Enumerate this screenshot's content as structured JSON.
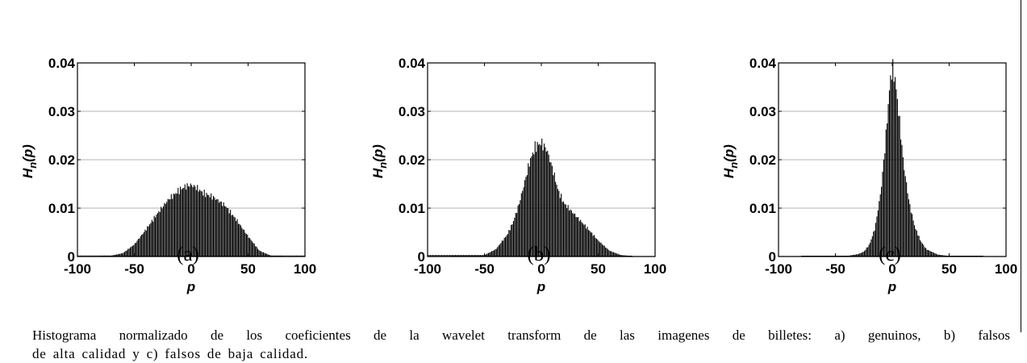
{
  "figures": [
    {
      "id": "a",
      "panel_label": "(a)"
    },
    {
      "id": "b",
      "panel_label": "(b)"
    },
    {
      "id": "c",
      "panel_label": "(c)"
    }
  ],
  "caption": {
    "line1": "Histograma normalizado de los coeficientes de la wavelet transform de las imagenes de billetes: a) genuinos, b) falsos",
    "line2": "de alta calidad y c) falsos de baja calidad."
  },
  "chart_data": [
    {
      "type": "bar",
      "title": "",
      "xlabel": "p",
      "ylabel": "H_n(p)",
      "ylabel_main": "H",
      "ylabel_sub": "n",
      "ylabel_tail": "(p)",
      "xlim": [
        -100,
        100
      ],
      "ylim": [
        0,
        0.04
      ],
      "xticks": [
        "-100",
        "-50",
        "0",
        "50",
        "100"
      ],
      "yticks": [
        "0",
        "0.01",
        "0.02",
        "0.03",
        "0.04"
      ],
      "grid": "horizontal",
      "bar_color": "#000000",
      "x": [
        -70,
        -60,
        -50,
        -40,
        -30,
        -20,
        -10,
        -5,
        0,
        5,
        10,
        20,
        30,
        40,
        50,
        60,
        70
      ],
      "values": [
        0.0002,
        0.0007,
        0.0025,
        0.0055,
        0.0088,
        0.0118,
        0.0138,
        0.0145,
        0.0148,
        0.0142,
        0.0132,
        0.0122,
        0.0105,
        0.0075,
        0.0042,
        0.0012,
        0.0002
      ]
    },
    {
      "type": "bar",
      "title": "",
      "xlabel": "p",
      "ylabel": "H_n(p)",
      "ylabel_main": "H",
      "ylabel_sub": "n",
      "ylabel_tail": "(p)",
      "xlim": [
        -100,
        100
      ],
      "ylim": [
        0,
        0.04
      ],
      "xticks": [
        "-100",
        "-50",
        "0",
        "50",
        "100"
      ],
      "yticks": [
        "0",
        "0.01",
        "0.02",
        "0.03",
        "0.04"
      ],
      "grid": "horizontal",
      "bar_color": "#000000",
      "x": [
        -50,
        -40,
        -30,
        -25,
        -20,
        -15,
        -10,
        -5,
        0,
        5,
        10,
        15,
        20,
        30,
        40,
        50,
        60,
        70,
        80
      ],
      "values": [
        0.0003,
        0.0015,
        0.0045,
        0.007,
        0.0105,
        0.015,
        0.0198,
        0.0228,
        0.0235,
        0.022,
        0.018,
        0.0135,
        0.011,
        0.0085,
        0.006,
        0.0033,
        0.0012,
        0.0003,
        0.0001
      ]
    },
    {
      "type": "bar",
      "title": "",
      "xlabel": "p",
      "ylabel": "H_n(p)",
      "ylabel_main": "H",
      "ylabel_sub": "n",
      "ylabel_tail": "(p)",
      "xlim": [
        -100,
        100
      ],
      "ylim": [
        0,
        0.04
      ],
      "xticks": [
        "-100",
        "-50",
        "0",
        "50",
        "100"
      ],
      "yticks": [
        "0",
        "0.01",
        "0.02",
        "0.03",
        "0.04"
      ],
      "grid": "horizontal",
      "bar_color": "#000000",
      "x": [
        -40,
        -30,
        -25,
        -20,
        -15,
        -10,
        -6,
        -3,
        -1,
        0,
        2,
        4,
        7,
        10,
        15,
        20,
        25,
        30,
        40,
        50
      ],
      "values": [
        0.0001,
        0.0005,
        0.001,
        0.0025,
        0.006,
        0.0135,
        0.0235,
        0.033,
        0.038,
        0.0388,
        0.0375,
        0.0335,
        0.0265,
        0.019,
        0.011,
        0.006,
        0.0032,
        0.0015,
        0.0004,
        0.0001
      ]
    }
  ]
}
